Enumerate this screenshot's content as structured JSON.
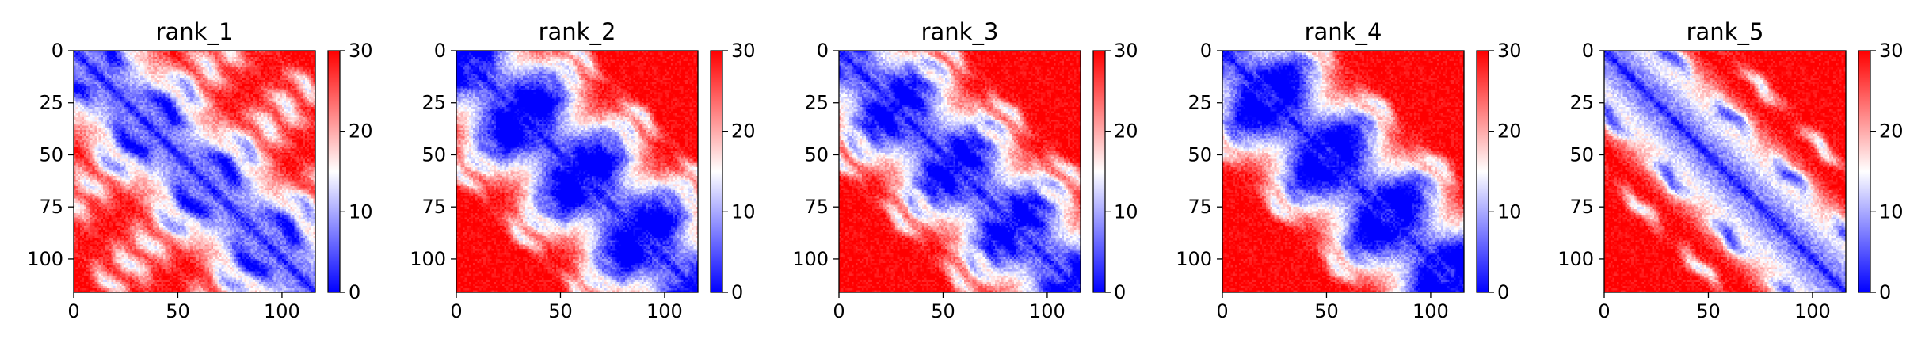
{
  "chart_data": [
    {
      "type": "heatmap",
      "title": "rank_1",
      "size": 116,
      "vmin": 0,
      "vmax": 30,
      "colormap": "bwr",
      "xticks": [
        0,
        50,
        100
      ],
      "yticks": [
        0,
        25,
        50,
        75,
        100
      ],
      "colorbar_ticks": [
        0,
        10,
        20,
        30
      ],
      "bands": [
        {
          "offset": 18,
          "width": 4.5
        },
        {
          "offset": 37,
          "width": 5
        },
        {
          "offset": 56,
          "width": 5
        },
        {
          "offset": 75,
          "width": 5
        },
        {
          "offset": 94,
          "width": 4
        }
      ]
    },
    {
      "type": "heatmap",
      "title": "rank_2",
      "size": 116,
      "vmin": 0,
      "vmax": 30,
      "colormap": "bwr",
      "xticks": [
        0,
        50,
        100
      ],
      "yticks": [
        0,
        25,
        50,
        75,
        100
      ],
      "colorbar_ticks": [
        0,
        10,
        20,
        30
      ],
      "bands": [
        {
          "offset": 11,
          "width": 5
        },
        {
          "offset": 22,
          "width": 5
        },
        {
          "offset": 33,
          "width": 4.5
        },
        {
          "offset": 45,
          "width": 4
        },
        {
          "offset": 57,
          "width": 3.5
        }
      ]
    },
    {
      "type": "heatmap",
      "title": "rank_3",
      "size": 116,
      "vmin": 0,
      "vmax": 30,
      "colormap": "bwr",
      "xticks": [
        0,
        50,
        100
      ],
      "yticks": [
        0,
        25,
        50,
        75,
        100
      ],
      "colorbar_ticks": [
        0,
        10,
        20,
        30
      ],
      "bands": [
        {
          "offset": 12,
          "width": 4.5
        },
        {
          "offset": 25,
          "width": 4.5
        },
        {
          "offset": 39,
          "width": 4
        },
        {
          "offset": 52,
          "width": 3.5
        }
      ]
    },
    {
      "type": "heatmap",
      "title": "rank_4",
      "size": 116,
      "vmin": 0,
      "vmax": 30,
      "colormap": "bwr",
      "xticks": [
        0,
        50,
        100
      ],
      "yticks": [
        0,
        25,
        50,
        75,
        100
      ],
      "colorbar_ticks": [
        0,
        10,
        20,
        30
      ],
      "bands": [
        {
          "offset": 11,
          "width": 5
        },
        {
          "offset": 23,
          "width": 5
        },
        {
          "offset": 35,
          "width": 4.5
        },
        {
          "offset": 48,
          "width": 4
        }
      ]
    },
    {
      "type": "heatmap",
      "title": "rank_5",
      "size": 116,
      "vmin": 0,
      "vmax": 30,
      "colormap": "bwr",
      "xticks": [
        0,
        50,
        100
      ],
      "yticks": [
        0,
        25,
        50,
        75,
        100
      ],
      "colorbar_ticks": [
        0,
        10,
        20,
        30
      ],
      "bands": [
        {
          "offset": 30,
          "width": 4
        },
        {
          "offset": 58,
          "width": 3.5
        }
      ]
    }
  ]
}
